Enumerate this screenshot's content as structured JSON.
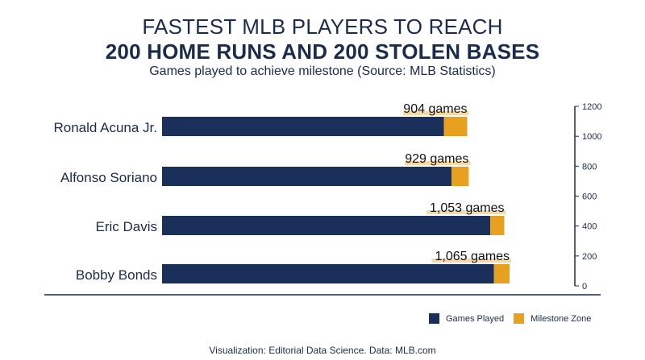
{
  "header": {
    "title_line1": "FASTEST MLB PLAYERS TO REACH",
    "title_line2": "200 HOME RUNS AND 200 STOLEN BASES",
    "subtitle": "Games played to achieve milestone (Source: MLB Statistics)"
  },
  "colors": {
    "games_played": "#1a2f5a",
    "milestone_zone": "#e8a021",
    "highlight": "#f5d9a6",
    "text": "#1a2b4c"
  },
  "chart_data": {
    "type": "bar",
    "orientation": "horizontal",
    "categories": [
      "Ronald Acuna Jr.",
      "Alfonso Soriano",
      "Eric Davis",
      "Bobby Bonds"
    ],
    "series": [
      {
        "name": "Games Played",
        "values": [
          904,
          929,
          1053,
          1065
        ]
      },
      {
        "name": "Milestone Zone",
        "values": [
          75,
          55,
          45,
          50
        ]
      }
    ],
    "data_labels": [
      "904 games",
      "929 games",
      "1,053 games",
      "1,065 games"
    ],
    "xlim": [
      0,
      1200
    ],
    "axis_ticks": [
      "0",
      "200",
      "400",
      "600",
      "800",
      "1000",
      "1200"
    ],
    "legend_position": "bottom-right",
    "grid": false
  },
  "legend": {
    "items": [
      {
        "label": "Games Played"
      },
      {
        "label": "Milestone Zone"
      }
    ]
  },
  "footer": {
    "credit": "Visualization: Editorial Data Science. Data: MLB.com"
  }
}
